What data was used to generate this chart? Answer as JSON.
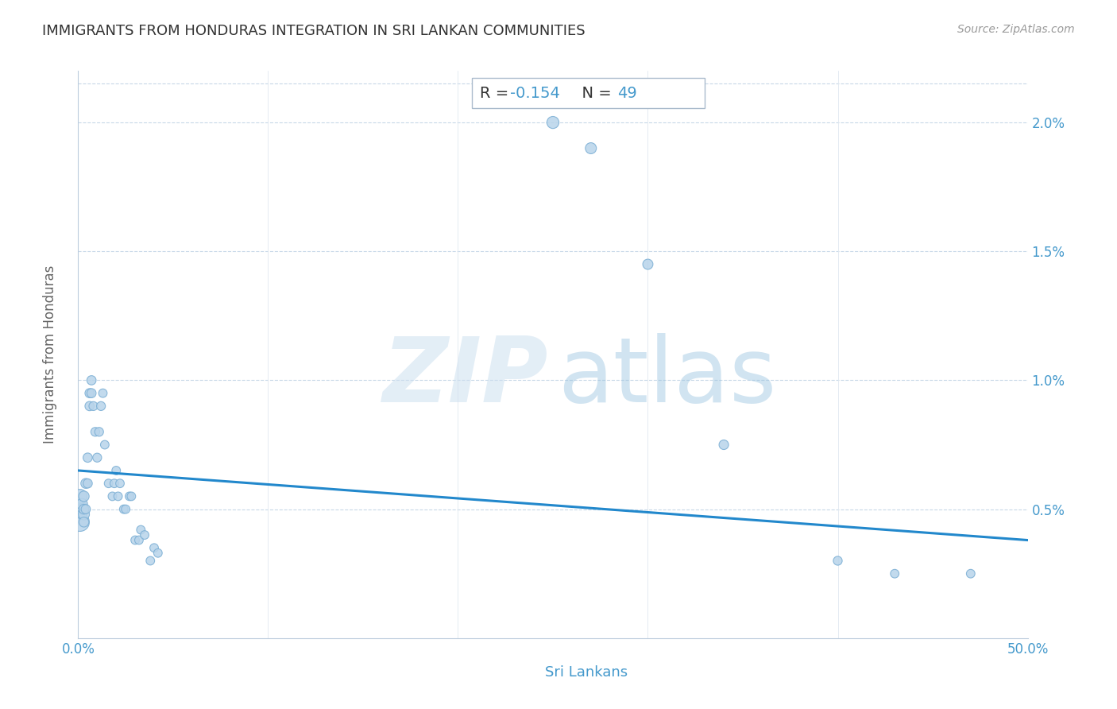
{
  "title": "IMMIGRANTS FROM HONDURAS INTEGRATION IN SRI LANKAN COMMUNITIES",
  "source": "Source: ZipAtlas.com",
  "xlabel": "Sri Lankans",
  "ylabel": "Immigrants from Honduras",
  "R_value": "-0.154",
  "N_value": "49",
  "xlim": [
    0.0,
    0.5
  ],
  "ylim": [
    0.0,
    0.022
  ],
  "scatter_color": "#b8d4ea",
  "scatter_edge_color": "#7aaed4",
  "line_color": "#2288cc",
  "background_color": "#ffffff",
  "grid_color": "#c8d8e8",
  "tick_color": "#4499cc",
  "title_color": "#333333",
  "source_color": "#999999",
  "watermark_zip_color": "#cce0f0",
  "watermark_atlas_color": "#99c4e0",
  "scatter_x": [
    0.001,
    0.001,
    0.001,
    0.002,
    0.002,
    0.002,
    0.003,
    0.003,
    0.003,
    0.003,
    0.004,
    0.004,
    0.005,
    0.005,
    0.006,
    0.006,
    0.007,
    0.007,
    0.008,
    0.009,
    0.01,
    0.011,
    0.012,
    0.013,
    0.014,
    0.016,
    0.018,
    0.019,
    0.02,
    0.021,
    0.022,
    0.024,
    0.025,
    0.027,
    0.028,
    0.03,
    0.032,
    0.033,
    0.035,
    0.038,
    0.04,
    0.042,
    0.25,
    0.27,
    0.3,
    0.34,
    0.4,
    0.43,
    0.47
  ],
  "scatter_y": [
    0.005,
    0.0055,
    0.0045,
    0.005,
    0.0052,
    0.0048,
    0.0048,
    0.0055,
    0.005,
    0.0045,
    0.006,
    0.005,
    0.007,
    0.006,
    0.009,
    0.0095,
    0.0095,
    0.01,
    0.009,
    0.008,
    0.007,
    0.008,
    0.009,
    0.0095,
    0.0075,
    0.006,
    0.0055,
    0.006,
    0.0065,
    0.0055,
    0.006,
    0.005,
    0.005,
    0.0055,
    0.0055,
    0.0038,
    0.0038,
    0.0042,
    0.004,
    0.003,
    0.0035,
    0.0033,
    0.02,
    0.019,
    0.0145,
    0.0075,
    0.003,
    0.0025,
    0.0025
  ],
  "scatter_sizes": [
    220,
    160,
    280,
    100,
    100,
    80,
    100,
    90,
    80,
    80,
    80,
    70,
    70,
    70,
    70,
    70,
    70,
    70,
    65,
    65,
    65,
    65,
    65,
    60,
    60,
    60,
    60,
    60,
    60,
    60,
    60,
    60,
    60,
    60,
    60,
    60,
    60,
    60,
    60,
    60,
    60,
    60,
    120,
    100,
    85,
    75,
    65,
    60,
    60
  ],
  "line_y_at_x0": 0.0065,
  "line_y_at_x50": 0.0038
}
